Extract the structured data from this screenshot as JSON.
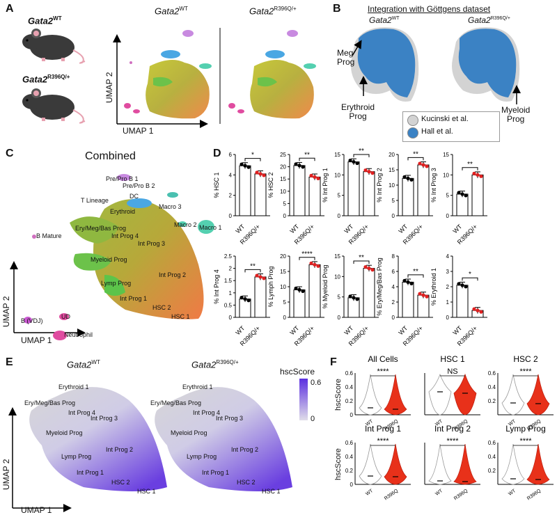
{
  "panels": {
    "A": {
      "letter": "A",
      "mouse_wt": "Gata2",
      "mouse_wt_sup": "WT",
      "mouse_mut": "Gata2",
      "mouse_mut_sup": "R396Q/+",
      "umap_wt_title": "Gata2",
      "umap_wt_sup": "WT",
      "umap_mut_title": "Gata2",
      "umap_mut_sup": "R396Q/+",
      "umap1": "UMAP 1",
      "umap2": "UMAP 2"
    },
    "B": {
      "letter": "B",
      "title": "Integration with Göttgens dataset",
      "wt_title": "Gata2",
      "wt_sup": "WT",
      "mut_title": "Gata2",
      "mut_sup": "R396Q/+",
      "meg_prog": "Meg\nProg",
      "erythroid_prog": "Erythroid\nProg",
      "myeloid_prog": "Myeloid\nProg",
      "legend": [
        {
          "label": "Kucinski et al.",
          "color": "#d3d3d3"
        },
        {
          "label": "Hall et al.",
          "color": "#3b82c4"
        }
      ]
    },
    "C": {
      "letter": "C",
      "title": "Combined",
      "umap1": "UMAP 1",
      "umap2": "UMAP 2",
      "clusters": [
        "Pre/Pro B 1",
        "Pre/Pro B 2",
        "DC",
        "T Lineage",
        "Erythroid",
        "Macro 3",
        "Macro 2",
        "Macro 1",
        "Ery/Meg/Bas Prog",
        "Int Prog 4",
        "Int Prog 3",
        "B Mature",
        "Myeloid Prog",
        "Int Prog 2",
        "Lymp Prog",
        "Int Prog 1",
        "HSC 2",
        "HSC 1",
        "B (VDJ)",
        "UD",
        "Neutrophil"
      ]
    },
    "D": {
      "letter": "D"
    },
    "E": {
      "letter": "E",
      "wt_title": "Gata2",
      "wt_sup": "WT",
      "mut_title": "Gata2",
      "mut_sup": "R396Q/+",
      "legend_title": "hscScore",
      "legend_max": "0.6",
      "legend_min": "0",
      "umap1": "UMAP 1",
      "umap2": "UMAP 2",
      "clusters": [
        "Erythroid 1",
        "Ery/Meg/Bas Prog",
        "Int Prog 4",
        "Int Prog 3",
        "Myeloid Prog",
        "Int Prog 2",
        "Lymp Prog",
        "Int Prog 1",
        "HSC 2",
        "HSC 1"
      ]
    },
    "F": {
      "letter": "F",
      "ylabel": "hscScore"
    }
  },
  "chart_data": [
    {
      "type": "bar",
      "panel": "D",
      "ylabel": "% HSC 1",
      "categories": [
        "WT",
        "R396Q/+"
      ],
      "values": [
        4.9,
        4.1
      ],
      "ylim": [
        0,
        6
      ],
      "yticks": [
        0,
        2,
        4,
        6
      ],
      "sig": "*"
    },
    {
      "type": "bar",
      "panel": "D",
      "ylabel": "% HSC 2",
      "categories": [
        "WT",
        "R396Q/+"
      ],
      "values": [
        20.5,
        15.8
      ],
      "ylim": [
        0,
        25
      ],
      "yticks": [
        0,
        5,
        10,
        15,
        20,
        25
      ],
      "sig": "**"
    },
    {
      "type": "bar",
      "panel": "D",
      "ylabel": "% Int Prog 1",
      "categories": [
        "WT",
        "R396Q/+"
      ],
      "values": [
        13.2,
        10.8
      ],
      "ylim": [
        0,
        15
      ],
      "yticks": [
        0,
        5,
        10,
        15
      ],
      "sig": "**"
    },
    {
      "type": "bar",
      "panel": "D",
      "ylabel": "% Int Prog 2",
      "categories": [
        "WT",
        "R396Q/+"
      ],
      "values": [
        12.2,
        16.6
      ],
      "ylim": [
        0,
        20
      ],
      "yticks": [
        0,
        5,
        10,
        15,
        20
      ],
      "sig": "**"
    },
    {
      "type": "bar",
      "panel": "D",
      "ylabel": "% Int Prog 3",
      "categories": [
        "WT",
        "R396Q/+"
      ],
      "values": [
        5.3,
        10
      ],
      "ylim": [
        0,
        15
      ],
      "yticks": [
        0,
        5,
        10,
        15
      ],
      "sig": "**"
    },
    {
      "type": "bar",
      "panel": "D",
      "ylabel": "% Int Prog 4",
      "categories": [
        "WT",
        "R396Q/+"
      ],
      "values": [
        0.75,
        1.65
      ],
      "ylim": [
        0,
        2.5
      ],
      "yticks": [
        0,
        0.5,
        1,
        1.5,
        2,
        2.5
      ],
      "sig": "**"
    },
    {
      "type": "bar",
      "panel": "D",
      "ylabel": "% Lymph Prog",
      "categories": [
        "WT",
        "R396Q/+"
      ],
      "values": [
        9,
        17.2
      ],
      "ylim": [
        0,
        20
      ],
      "yticks": [
        0,
        5,
        10,
        15,
        20
      ],
      "sig": "****"
    },
    {
      "type": "bar",
      "panel": "D",
      "ylabel": "% Myeloid Prog",
      "categories": [
        "WT",
        "R396Q/+"
      ],
      "values": [
        4.8,
        12
      ],
      "ylim": [
        0,
        15
      ],
      "yticks": [
        0,
        5,
        10,
        15
      ],
      "sig": "**"
    },
    {
      "type": "bar",
      "panel": "D",
      "ylabel": "% Ery/Meg/Bas Prog",
      "categories": [
        "WT",
        "R396Q/+"
      ],
      "values": [
        4.6,
        2.9
      ],
      "ylim": [
        0,
        8
      ],
      "yticks": [
        0,
        2,
        4,
        6,
        8
      ],
      "sig": "**"
    },
    {
      "type": "bar",
      "panel": "D",
      "ylabel": "% Erythroid 1",
      "categories": [
        "WT",
        "R396Q/+"
      ],
      "values": [
        2.1,
        0.45
      ],
      "ylim": [
        0,
        4
      ],
      "yticks": [
        0,
        1,
        2,
        3,
        4
      ],
      "sig": "*"
    },
    {
      "type": "violin",
      "panel": "F",
      "title": "All Cells",
      "categories": [
        "WT",
        "R396Q"
      ],
      "medians": [
        0.1,
        0.08
      ],
      "ylim": [
        0,
        0.6
      ],
      "yticks": [
        0,
        0.2,
        0.4,
        0.6
      ],
      "sig": "****"
    },
    {
      "type": "violin",
      "panel": "F",
      "title": "HSC 1",
      "categories": [
        "WT",
        "R396Q"
      ],
      "medians": [
        0.33,
        0.31
      ],
      "ylim": [
        0,
        0.6
      ],
      "yticks": [],
      "sig": "NS"
    },
    {
      "type": "violin",
      "panel": "F",
      "title": "HSC 2",
      "categories": [
        "WT",
        "R396Q"
      ],
      "medians": [
        0.17,
        0.16
      ],
      "ylim": [
        0,
        0.6
      ],
      "yticks": [
        0.2,
        0.4,
        0.6
      ],
      "sig": "****"
    },
    {
      "type": "violin",
      "panel": "F",
      "title": "Int Prog 1",
      "categories": [
        "WT",
        "R396Q"
      ],
      "medians": [
        0.12,
        0.11
      ],
      "ylim": [
        0,
        0.6
      ],
      "yticks": [
        0,
        0.2,
        0.4,
        0.6
      ],
      "sig": "****"
    },
    {
      "type": "violin",
      "panel": "F",
      "title": "Int Prog 2",
      "categories": [
        "WT",
        "R396Q"
      ],
      "medians": [
        0.05,
        0.04
      ],
      "ylim": [
        0,
        0.6
      ],
      "yticks": [],
      "sig": "****"
    },
    {
      "type": "violin",
      "panel": "F",
      "title": "Lymp Prog",
      "categories": [
        "WT",
        "R396Q"
      ],
      "medians": [
        0.08,
        0.07
      ],
      "ylim": [
        0,
        0.6
      ],
      "yticks": [
        0.2,
        0.4,
        0.6
      ],
      "sig": "****"
    }
  ]
}
